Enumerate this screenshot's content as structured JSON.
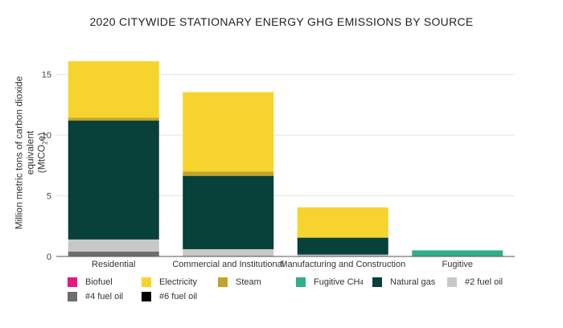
{
  "chart_data": {
    "type": "bar",
    "stacked": true,
    "title": "2020 CITYWIDE STATIONARY ENERGY GHG EMISSIONS BY SOURCE",
    "ylabel": "Million metric tons of carbon dioxide equivalent",
    "ylabel_unit_prefix": "(MtCO",
    "ylabel_unit_sub": "2",
    "ylabel_unit_suffix": "e)",
    "ylim": [
      0,
      17.5
    ],
    "yticks": [
      0,
      5,
      10,
      15
    ],
    "grid": true,
    "legend_position": "bottom",
    "categories": [
      "Residential",
      "Commercial and Institutional",
      "Manufacturing and Construction",
      "Fugitive"
    ],
    "series": [
      {
        "name": "#4 fuel oil",
        "color": "#6e6e6e",
        "values": [
          0.4,
          0.05,
          0,
          0
        ]
      },
      {
        "name": "#6 fuel oil",
        "color": "#000000",
        "values": [
          0,
          0,
          0,
          0
        ]
      },
      {
        "name": "#2 fuel oil",
        "color": "#c8c8c8",
        "values": [
          1.0,
          0.55,
          0.15,
          0
        ]
      },
      {
        "name": "Natural gas",
        "color": "#08403a",
        "values": [
          9.8,
          6.05,
          1.4,
          0
        ]
      },
      {
        "name": "Steam",
        "color": "#c2a528",
        "values": [
          0.25,
          0.35,
          0,
          0
        ]
      },
      {
        "name": "Electricity",
        "color": "#f7d42d",
        "values": [
          4.65,
          6.55,
          2.5,
          0
        ]
      },
      {
        "name": "Fugitive CH",
        "name_sub": "4",
        "color": "#2fb08a",
        "values": [
          0,
          0,
          0,
          0.5
        ]
      },
      {
        "name": "Biofuel",
        "color": "#e6197c",
        "values": [
          0,
          0,
          0,
          0
        ]
      }
    ],
    "legend_order": [
      "Biofuel",
      "Electricity",
      "Steam",
      "Fugitive CH",
      "Natural gas",
      "#2 fuel oil",
      "#4 fuel oil",
      "#6 fuel oil"
    ]
  }
}
